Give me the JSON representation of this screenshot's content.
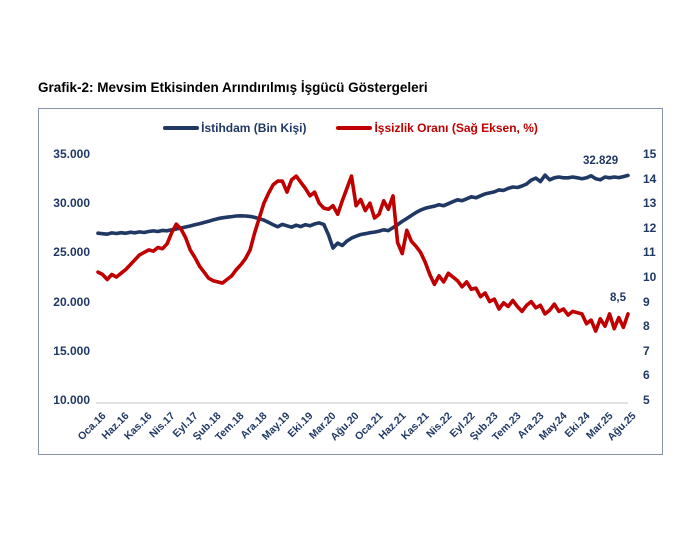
{
  "title": "Grafik-2: Mevsim Etkisinden Arındırılmış İşgücü Göstergeleri",
  "colors": {
    "navy": "#1f3864",
    "red": "#c00000",
    "frame": "#8793a9",
    "baseline": "#d9d9d9"
  },
  "legend": [
    {
      "label": "İstihdam (Bin Kişi)",
      "color": "#1f3864"
    },
    {
      "label": "İşsizlik Oranı (Sağ Eksen, %)",
      "color": "#c00000"
    }
  ],
  "annotations": {
    "last_employment": "32.829",
    "last_unemployment": "8,5"
  },
  "chart_data": {
    "type": "line",
    "title": "Grafik-2: Mevsim Etkisinden Arındırılmış İşgücü Göstergeleri",
    "x_tick_labels": [
      "Oca.16",
      "Haz.16",
      "Kas.16",
      "Nis.17",
      "Eyl.17",
      "Şub.18",
      "Tem.18",
      "Ara.18",
      "May.19",
      "Eki.19",
      "Mar.20",
      "Ağu.20",
      "Oca.21",
      "Haz.21",
      "Kas.21",
      "Nis.22",
      "Eyl.22",
      "Şub.23",
      "Tem.23",
      "Ara.23",
      "May.24",
      "Eki.24",
      "Mar.25",
      "Ağu.25"
    ],
    "x_tick_every_n_months": 5,
    "left_axis": {
      "label": "İstihdam (Bin Kişi)",
      "min": 10000,
      "max": 35000,
      "tick_labels": [
        "35.000",
        "30.000",
        "25.000",
        "20.000",
        "15.000",
        "10.000"
      ]
    },
    "right_axis": {
      "label": "İşsizlik Oranı (%)",
      "min": 5,
      "max": 15,
      "tick_labels": [
        "15",
        "14",
        "13",
        "12",
        "11",
        "10",
        "9",
        "8",
        "7",
        "6",
        "5"
      ]
    },
    "grid": false,
    "legend_position": "top-center",
    "series": [
      {
        "name": "İstihdam (Bin Kişi)",
        "axis": "left",
        "color": "#1f3864",
        "values": [
          26950,
          26900,
          26850,
          26980,
          26920,
          27000,
          26940,
          27050,
          26990,
          27080,
          27020,
          27120,
          27180,
          27120,
          27240,
          27200,
          27300,
          27380,
          27480,
          27580,
          27680,
          27800,
          27920,
          28040,
          28160,
          28300,
          28420,
          28520,
          28580,
          28640,
          28700,
          28720,
          28700,
          28660,
          28560,
          28420,
          28280,
          28050,
          27820,
          27600,
          27850,
          27700,
          27560,
          27760,
          27620,
          27820,
          27700,
          27900,
          28000,
          27850,
          26800,
          25450,
          25950,
          25700,
          26150,
          26450,
          26650,
          26820,
          26900,
          27000,
          27060,
          27160,
          27300,
          27220,
          27520,
          27820,
          28150,
          28450,
          28750,
          29050,
          29300,
          29480,
          29600,
          29700,
          29850,
          29750,
          29950,
          30150,
          30350,
          30250,
          30450,
          30650,
          30550,
          30750,
          30950,
          31050,
          31150,
          31350,
          31300,
          31500,
          31650,
          31600,
          31750,
          31950,
          32350,
          32550,
          32200,
          32850,
          32380,
          32580,
          32660,
          32580,
          32580,
          32660,
          32580,
          32480,
          32580,
          32780,
          32480,
          32380,
          32660,
          32580,
          32660,
          32600,
          32700,
          32829
        ]
      },
      {
        "name": "İşsizlik Oranı (Sağ Eksen, %)",
        "axis": "right",
        "color": "#c00000",
        "values": [
          10.2,
          10.1,
          9.9,
          10.1,
          10.0,
          10.15,
          10.3,
          10.5,
          10.7,
          10.9,
          11.0,
          11.1,
          11.05,
          11.2,
          11.15,
          11.35,
          11.8,
          12.15,
          11.95,
          11.6,
          11.1,
          10.8,
          10.45,
          10.2,
          9.95,
          9.85,
          9.8,
          9.75,
          9.9,
          10.05,
          10.3,
          10.5,
          10.75,
          11.1,
          11.8,
          12.4,
          13.0,
          13.4,
          13.75,
          13.9,
          13.9,
          13.45,
          13.95,
          14.1,
          13.85,
          13.6,
          13.3,
          13.45,
          13.0,
          12.8,
          12.75,
          12.9,
          12.55,
          13.1,
          13.6,
          14.1,
          12.9,
          13.15,
          12.7,
          13.0,
          12.4,
          12.55,
          13.1,
          12.75,
          13.3,
          11.4,
          10.95,
          11.9,
          11.45,
          11.25,
          11.0,
          10.6,
          10.1,
          9.7,
          10.05,
          9.8,
          10.15,
          10.0,
          9.85,
          9.6,
          9.8,
          9.5,
          9.55,
          9.2,
          9.35,
          9.0,
          9.1,
          8.7,
          8.95,
          8.8,
          9.05,
          8.8,
          8.6,
          8.85,
          9.0,
          8.75,
          8.85,
          8.5,
          8.65,
          8.9,
          8.6,
          8.7,
          8.45,
          8.6,
          8.55,
          8.5,
          8.1,
          8.25,
          7.8,
          8.3,
          8.0,
          8.5,
          7.9,
          8.35,
          7.95,
          8.5
        ]
      }
    ]
  }
}
